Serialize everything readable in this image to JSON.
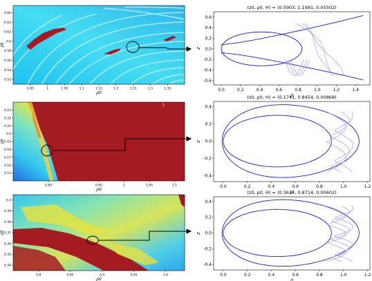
{
  "colors": {
    "curve": "#1a1adc",
    "orbit_light": "#9aa0ee",
    "connector": "#000000",
    "map_dark_red": "#a51b22",
    "map_cyan": "#2ed8f0"
  },
  "chart_data": [
    {
      "id": "map-1",
      "type": "heatmap",
      "xlabel": "ρ0",
      "ylabel": "z0",
      "x_ticks": [
        "0.95",
        "1",
        "1.05",
        "1.1",
        "1.15",
        "1.2",
        "1.25",
        "1.3",
        "1.35"
      ],
      "y_ticks": [
        "0.66",
        "0.64",
        "0.62",
        "0.6",
        "0.58",
        "0.56",
        "0.54",
        "0.52"
      ],
      "xlim": [
        0.9,
        1.4
      ],
      "ylim": [
        0.51,
        0.675
      ]
    },
    {
      "id": "orbit-1",
      "type": "line",
      "title": "(z0, ρ0, H) = (0.5903, 1.1991, 0.05502)",
      "xlabel": "ρ",
      "ylabel": "z",
      "x_ticks": [
        "0.0",
        "0.2",
        "0.4",
        "0.6",
        "0.8",
        "1.0",
        "1.2",
        "1.4"
      ],
      "y_ticks": [
        "0.6",
        "0.4",
        "0.2",
        "0.0",
        "-0.2",
        "-0.4",
        "-0.6"
      ],
      "xlim": [
        -0.08,
        1.55
      ],
      "ylim": [
        -0.68,
        0.7
      ]
    },
    {
      "id": "map-2",
      "type": "heatmap",
      "xlabel": "ρ0",
      "ylabel": "z0",
      "x_ticks": [
        "0.85",
        "0.95",
        "1",
        "1.05",
        "1.1"
      ],
      "y_ticks": [
        "0.23",
        "0.22",
        "0.21",
        "0.2",
        "0.19",
        "0.18",
        "0.17",
        "0.16",
        "0.15"
      ],
      "xlim": [
        0.78,
        1.12
      ],
      "ylim": [
        0.14,
        0.24
      ]
    },
    {
      "id": "orbit-2",
      "type": "line",
      "title": "(z0, ρ0, H) = (0.1741, 0.8454, 0.00868)",
      "xlabel": "ρ",
      "ylabel": "z",
      "x_ticks": [
        "0.0",
        "0.2",
        "0.4",
        "0.6",
        "0.8",
        "1.0",
        "1.2"
      ],
      "y_ticks": [
        "0.4",
        "0.2",
        "0.0",
        "-0.2",
        "-0.4"
      ],
      "xlim": [
        -0.08,
        1.22
      ],
      "ylim": [
        -0.47,
        0.46
      ]
    },
    {
      "id": "map-3",
      "type": "heatmap",
      "xlabel": "ρ0",
      "ylabel": "z0",
      "x_ticks": [
        "0.8",
        "0.85",
        "0.9",
        "0.95",
        "1.0"
      ],
      "y_ticks": [
        "0.4",
        "0.39",
        "0.38",
        "0.37",
        "0.36",
        "0.35",
        "0.34"
      ],
      "xlim": [
        0.76,
        1.03
      ],
      "ylim": [
        0.335,
        0.405
      ]
    },
    {
      "id": "orbit-3",
      "type": "line",
      "title": "(z0, ρ0, H) = (0.3614, 0.8714, 0.00602)",
      "xlabel": "ρ",
      "ylabel": "z",
      "x_ticks": [
        "0.0",
        "0.2",
        "0.4",
        "0.6",
        "0.8",
        "1.0",
        "1.2"
      ],
      "y_ticks": [
        "0.4",
        "0.2",
        "0.0",
        "-0.2",
        "-0.4"
      ],
      "xlim": [
        -0.08,
        1.22
      ],
      "ylim": [
        -0.47,
        0.46
      ]
    }
  ]
}
